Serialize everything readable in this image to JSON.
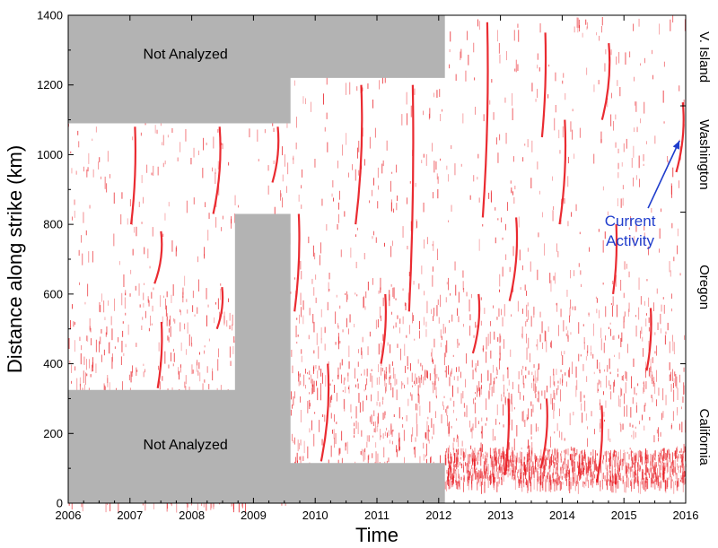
{
  "chart_data": {
    "type": "scatter",
    "title": "",
    "xlabel": "Time",
    "ylabel": "Distance along strike (km)",
    "xlim": [
      2006,
      2016
    ],
    "ylim": [
      0,
      1400
    ],
    "x_ticks": [
      "2006",
      "2007",
      "2008",
      "2009",
      "2010",
      "2011",
      "2012",
      "2013",
      "2014",
      "2015",
      "2016"
    ],
    "y_ticks": [
      "0",
      "200",
      "400",
      "600",
      "800",
      "1000",
      "1200",
      "1400"
    ],
    "point_color": "#e8141b",
    "grey_color": "#b3b3b3",
    "not_analyzed": [
      {
        "label": "Not Analyzed",
        "label_pos": [
          2007.9,
          1290
        ],
        "region": [
          [
            2006,
            1400
          ],
          [
            2012.1,
            1400
          ],
          [
            2012.1,
            1220
          ],
          [
            2009.6,
            1220
          ],
          [
            2009.6,
            1090
          ],
          [
            2006,
            1090
          ]
        ]
      },
      {
        "label": "Not Analyzed",
        "label_pos": [
          2007.9,
          170
        ],
        "region": [
          [
            2006,
            0
          ],
          [
            2012.1,
            0
          ],
          [
            2012.1,
            115
          ],
          [
            2009.6,
            115
          ],
          [
            2009.6,
            830
          ],
          [
            2008.7,
            830
          ],
          [
            2008.7,
            325
          ],
          [
            2006,
            325
          ]
        ]
      }
    ],
    "regions_right": [
      {
        "label": "V. Island",
        "y_center": 1280
      },
      {
        "label": "Washington",
        "y_center": 1000
      },
      {
        "label": "Oregon",
        "y_center": 620
      },
      {
        "label": "California",
        "y_center": 190
      }
    ],
    "region_boundaries": [
      1140,
      835,
      400
    ],
    "annotation": {
      "lines": [
        "Current",
        "Activity"
      ],
      "text_pos": [
        2015.1,
        795
      ],
      "arrow_to": [
        2015.9,
        1040
      ],
      "color": "#1f3dcc"
    },
    "tremor_episodes": [
      {
        "t": 2007.05,
        "y0": 800,
        "y1": 1080
      },
      {
        "t": 2007.45,
        "y0": 630,
        "y1": 780
      },
      {
        "t": 2007.48,
        "y0": 330,
        "y1": 520
      },
      {
        "t": 2008.4,
        "y0": 830,
        "y1": 1080
      },
      {
        "t": 2008.45,
        "y0": 500,
        "y1": 620
      },
      {
        "t": 2009.35,
        "y0": 920,
        "y1": 1080
      },
      {
        "t": 2009.7,
        "y0": 550,
        "y1": 830
      },
      {
        "t": 2010.15,
        "y0": 120,
        "y1": 400
      },
      {
        "t": 2010.7,
        "y0": 800,
        "y1": 1200
      },
      {
        "t": 2011.1,
        "y0": 400,
        "y1": 600
      },
      {
        "t": 2011.55,
        "y0": 550,
        "y1": 1200
      },
      {
        "t": 2012.6,
        "y0": 430,
        "y1": 600
      },
      {
        "t": 2012.75,
        "y0": 820,
        "y1": 1380
      },
      {
        "t": 2013.1,
        "y0": 80,
        "y1": 300
      },
      {
        "t": 2013.2,
        "y0": 580,
        "y1": 820
      },
      {
        "t": 2013.7,
        "y0": 100,
        "y1": 300
      },
      {
        "t": 2013.7,
        "y0": 1050,
        "y1": 1350
      },
      {
        "t": 2014.0,
        "y0": 800,
        "y1": 1100
      },
      {
        "t": 2014.6,
        "y0": 60,
        "y1": 280
      },
      {
        "t": 2014.7,
        "y0": 1100,
        "y1": 1320
      },
      {
        "t": 2014.85,
        "y0": 600,
        "y1": 800
      },
      {
        "t": 2015.4,
        "y0": 380,
        "y1": 560
      },
      {
        "t": 2015.9,
        "y0": 950,
        "y1": 1150
      }
    ]
  }
}
